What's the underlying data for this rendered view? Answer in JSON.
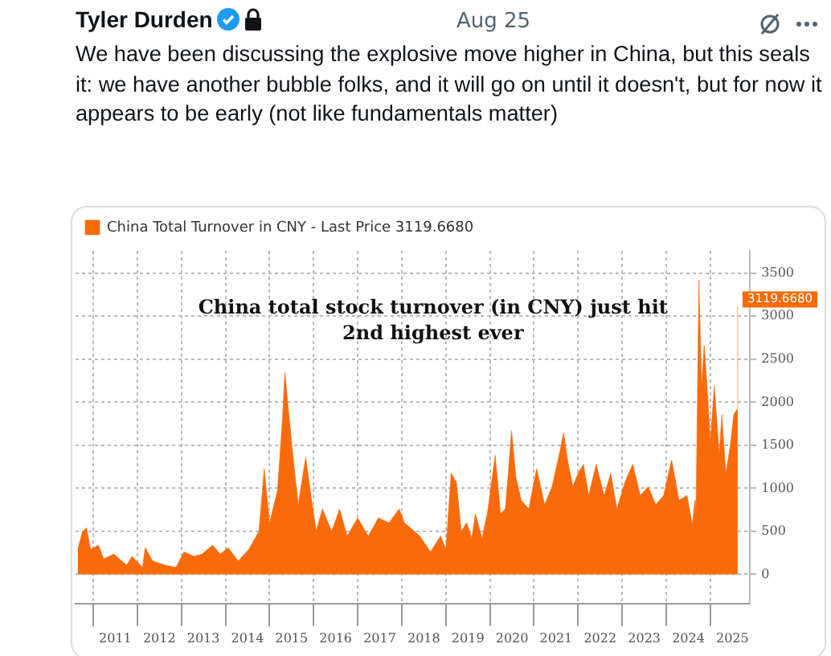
{
  "chart_data": {
    "type": "area",
    "title": "China total stock turnover (in CNY) just hit 2nd highest ever",
    "annotations": [
      "Tyler Durden",
      "Aug 25",
      "We have been discussing the explosive move higher in China, but this seals it: we have another bubble folks, and it will go on until it doesn't, but for now it appears to be early (not like fundamentals matter)"
    ],
    "x": [
      2010.65,
      2010.76,
      2010.85,
      2010.94,
      2011.12,
      2011.24,
      2011.47,
      2011.76,
      2011.88,
      2012.12,
      2012.18,
      2012.35,
      2012.65,
      2012.88,
      2013.06,
      2013.29,
      2013.47,
      2013.71,
      2013.88,
      2014.06,
      2014.29,
      2014.53,
      2014.76,
      2014.88,
      2015.0,
      2015.18,
      2015.29,
      2015.35,
      2015.41,
      2015.53,
      2015.65,
      2015.82,
      2015.94,
      2016.06,
      2016.2,
      2016.41,
      2016.59,
      2016.76,
      2017.0,
      2017.24,
      2017.47,
      2017.71,
      2017.94,
      2018.06,
      2018.41,
      2018.65,
      2018.88,
      2019.0,
      2019.12,
      2019.24,
      2019.35,
      2019.47,
      2019.59,
      2019.67,
      2019.82,
      2019.94,
      2020.12,
      2020.24,
      2020.35,
      2020.49,
      2020.59,
      2020.71,
      2020.88,
      2021.06,
      2021.24,
      2021.41,
      2021.59,
      2021.67,
      2021.76,
      2021.88,
      2022.0,
      2022.12,
      2022.24,
      2022.41,
      2022.59,
      2022.74,
      2022.88,
      2023.06,
      2023.24,
      2023.41,
      2023.59,
      2023.76,
      2023.94,
      2024.12,
      2024.29,
      2024.47,
      2024.59,
      2024.65,
      2024.67,
      2024.74,
      2024.8,
      2024.86,
      2024.92,
      2025.0,
      2025.09,
      2025.2,
      2025.26,
      2025.35,
      2025.45,
      2025.53,
      2025.59,
      2025.62
    ],
    "series": [
      {
        "name": "China Total Turnover in CNY - Last Price 3119.6680",
        "color": "#f96a0a",
        "values": [
          290,
          500,
          540,
          290,
          340,
          180,
          235,
          105,
          210,
          80,
          310,
          155,
          105,
          80,
          260,
          210,
          235,
          340,
          235,
          310,
          155,
          290,
          500,
          1230,
          600,
          970,
          1780,
          2350,
          2010,
          1385,
          810,
          1360,
          915,
          500,
          760,
          500,
          760,
          445,
          655,
          445,
          655,
          600,
          760,
          600,
          445,
          260,
          445,
          290,
          1175,
          1070,
          500,
          600,
          420,
          705,
          420,
          705,
          1385,
          705,
          760,
          1670,
          1125,
          860,
          760,
          1230,
          810,
          1020,
          1435,
          1645,
          1330,
          1020,
          1175,
          1280,
          915,
          1280,
          915,
          1175,
          760,
          1070,
          1280,
          915,
          1020,
          810,
          915,
          1330,
          860,
          915,
          575,
          860,
          550,
          3420,
          2195,
          2665,
          2220,
          1540,
          2195,
          1385,
          1855,
          1175,
          1490,
          1855,
          1910,
          3119.668
        ],
        "value_labels": [
          null,
          null,
          null,
          null,
          null,
          null,
          null,
          null,
          null,
          null,
          null,
          null,
          null,
          null,
          null,
          null,
          null,
          null,
          null,
          null,
          null,
          null,
          null,
          null,
          null,
          null,
          null,
          null,
          null,
          null,
          null,
          null,
          null,
          null,
          null,
          null,
          null,
          null,
          null,
          null,
          null,
          null,
          null,
          null,
          null,
          null,
          null,
          null,
          null,
          null,
          null,
          null,
          null,
          null,
          null,
          null,
          null,
          null,
          null,
          null,
          null,
          null,
          null,
          null,
          null,
          null,
          null,
          null,
          null,
          null,
          null,
          null,
          null,
          null,
          null,
          null,
          null,
          null,
          null,
          null,
          null,
          null,
          null,
          null,
          null,
          null,
          null,
          null,
          null,
          null,
          null,
          null,
          null,
          null,
          null,
          null,
          null,
          null,
          null,
          null,
          null,
          "3119.6680"
        ]
      }
    ],
    "xlim": [
      2010.6,
      2025.9
    ],
    "xticks": [
      {
        "value": 2011,
        "label": null
      },
      {
        "value": 2011.5,
        "label": "2011"
      },
      {
        "value": 2012,
        "label": null
      },
      {
        "value": 2012.5,
        "label": "2012"
      },
      {
        "value": 2013,
        "label": null
      },
      {
        "value": 2013.5,
        "label": "2013"
      },
      {
        "value": 2014,
        "label": null
      },
      {
        "value": 2014.5,
        "label": "2014"
      },
      {
        "value": 2015,
        "label": null
      },
      {
        "value": 2015.5,
        "label": "2015"
      },
      {
        "value": 2016,
        "label": null
      },
      {
        "value": 2016.5,
        "label": "2016"
      },
      {
        "value": 2017,
        "label": null
      },
      {
        "value": 2017.5,
        "label": "2017"
      },
      {
        "value": 2018,
        "label": null
      },
      {
        "value": 2018.5,
        "label": "2018"
      },
      {
        "value": 2019,
        "label": null
      },
      {
        "value": 2019.5,
        "label": "2019"
      },
      {
        "value": 2020,
        "label": null
      },
      {
        "value": 2020.5,
        "label": "2020"
      },
      {
        "value": 2021,
        "label": null
      },
      {
        "value": 2021.5,
        "label": "2021"
      },
      {
        "value": 2022,
        "label": null
      },
      {
        "value": 2022.5,
        "label": "2022"
      },
      {
        "value": 2023,
        "label": null
      },
      {
        "value": 2023.5,
        "label": "2023"
      },
      {
        "value": 2024,
        "label": null
      },
      {
        "value": 2024.5,
        "label": "2024"
      },
      {
        "value": 2025,
        "label": null
      },
      {
        "value": 2025.5,
        "label": "2025"
      }
    ],
    "ylim": [
      -340,
      3760
    ],
    "yticks": [
      0,
      500,
      1000,
      1500,
      2000,
      2500,
      3000,
      3500
    ],
    "grid": true,
    "legend": "top left",
    "marker": "none"
  }
}
